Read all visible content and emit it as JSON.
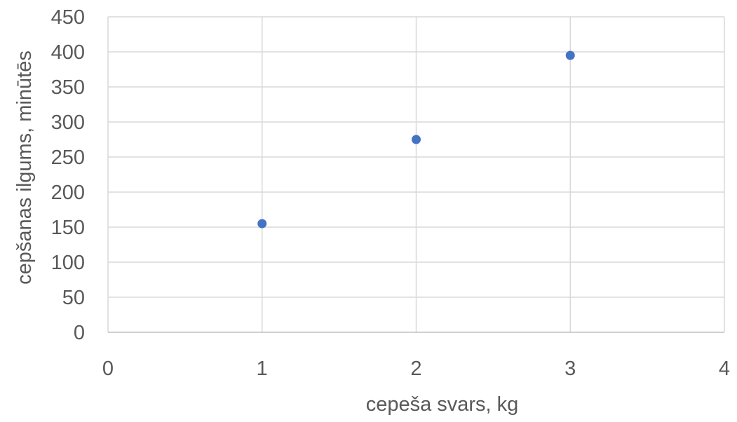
{
  "chart_data": {
    "type": "scatter",
    "title": "",
    "xlabel": "cepeša svars, kg",
    "ylabel": "cepšanas ilgums, minūtēs",
    "xlim": [
      0,
      4
    ],
    "ylim": [
      0,
      450
    ],
    "xticks": [
      0,
      1,
      2,
      3,
      4
    ],
    "yticks": [
      0,
      50,
      100,
      150,
      200,
      250,
      300,
      350,
      400,
      450
    ],
    "grid": true,
    "legend": "none",
    "series": [
      {
        "color": "#4472c4",
        "points": [
          {
            "x": 1,
            "y": 155
          },
          {
            "x": 2,
            "y": 275
          },
          {
            "x": 3,
            "y": 395
          }
        ]
      }
    ]
  }
}
